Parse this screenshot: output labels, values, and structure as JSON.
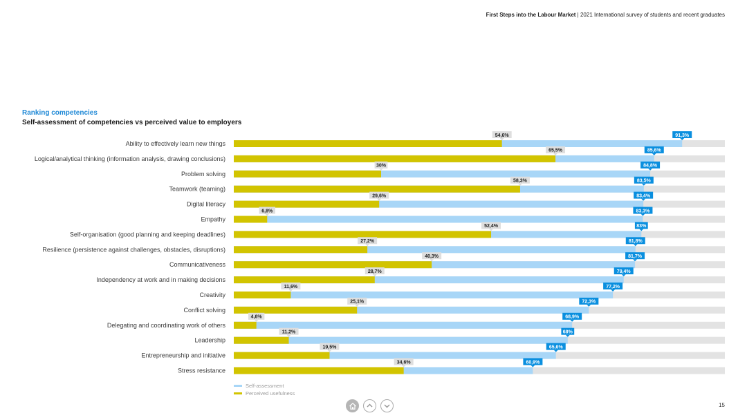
{
  "header": {
    "report_title": "First Steps into the Labour Market",
    "separator": " | ",
    "report_subtitle": "2021 International survey of students and recent graduates"
  },
  "page_number": "15",
  "colors": {
    "self": "#a8d6f7",
    "perceived": "#d2c400",
    "track": "#e3e3e3",
    "self_label_bg": "#0a8fdf",
    "perceived_label_bg": "#dedede"
  },
  "nav": {
    "home_icon": "home-icon",
    "up_icon": "chevron-up-icon",
    "down_icon": "chevron-down-icon"
  },
  "chart_data": {
    "type": "bar",
    "orientation": "horizontal",
    "title": "Ranking competencies",
    "subtitle": "Self-assessment of competencies vs perceived value to employers",
    "xlim": [
      0,
      100
    ],
    "legend_position": "bottom-left",
    "categories": [
      "Ability to effectively learn new things",
      "Logical/analytical thinking (information analysis, drawing conclusions)",
      "Problem solving",
      "Teamwork (teaming)",
      "Digital literacy",
      "Empathy",
      "Self-organisation (good planning and keeping deadlines)",
      "Resilience (persistence against challenges, obstacles, disruptions)",
      "Communicativeness",
      "Independency at work and in making decisions",
      "Creativity",
      "Conflict solving",
      "Delegating and coordinating work of others",
      "Leadership",
      "Entrepreneurship and initiative",
      "Stress resistance"
    ],
    "series": [
      {
        "name": "Self-assessment",
        "values": [
          91.3,
          85.6,
          84.8,
          83.5,
          83.4,
          83.3,
          83,
          81.8,
          81.7,
          79.4,
          77.2,
          72.3,
          68.9,
          68,
          65.6,
          60.9
        ],
        "labels": [
          "91,3%",
          "85,6%",
          "84,8%",
          "83,5%",
          "83,4%",
          "83,3%",
          "83%",
          "81,8%",
          "81,7%",
          "79,4%",
          "77,2%",
          "72,3%",
          "68,9%",
          "68%",
          "65,6%",
          "60,9%"
        ]
      },
      {
        "name": "Perceived usefulness",
        "values": [
          54.6,
          65.5,
          30,
          58.3,
          29.6,
          6.8,
          52.4,
          27.2,
          40.3,
          28.7,
          11.6,
          25.1,
          4.6,
          11.2,
          19.5,
          34.6
        ],
        "labels": [
          "54,6%",
          "65,5%",
          "30%",
          "58,3%",
          "29,6%",
          "6,8%",
          "52,4%",
          "27,2%",
          "40,3%",
          "28,7%",
          "11,6%",
          "25,1%",
          "4,6%",
          "11,2%",
          "19,5%",
          "34,6%"
        ]
      }
    ]
  }
}
